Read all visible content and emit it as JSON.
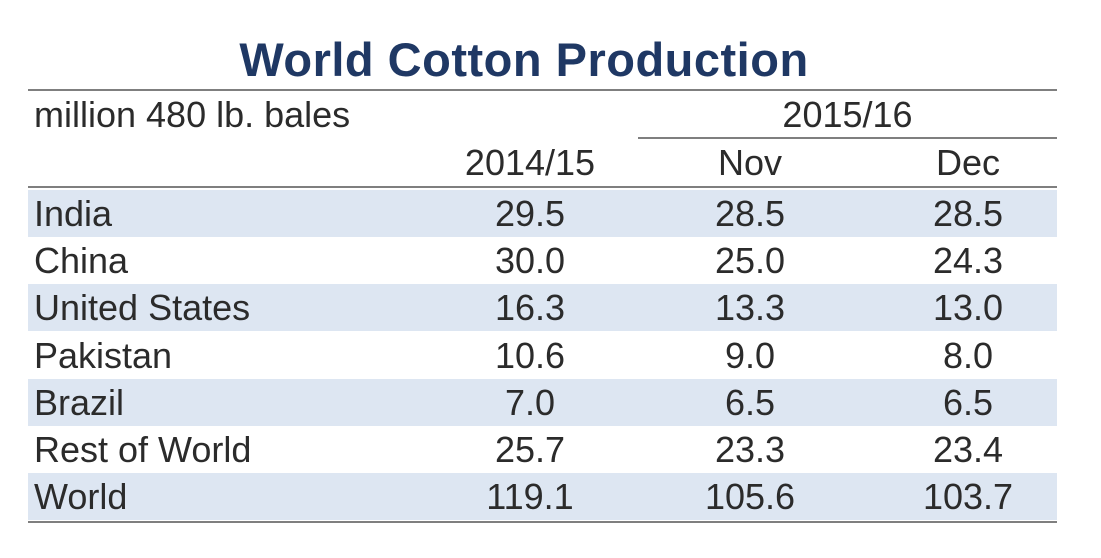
{
  "chart_data": {
    "type": "table",
    "title": "World Cotton Production",
    "unit_label": "million 480 lb. bales",
    "group_header": "2015/16",
    "columns": [
      "2014/15",
      "Nov",
      "Dec"
    ],
    "rows": [
      {
        "label": "India",
        "values": [
          "29.5",
          "28.5",
          "28.5"
        ]
      },
      {
        "label": "China",
        "values": [
          "30.0",
          "25.0",
          "24.3"
        ]
      },
      {
        "label": "United States",
        "values": [
          "16.3",
          "13.3",
          "13.0"
        ]
      },
      {
        "label": "Pakistan",
        "values": [
          "10.6",
          "9.0",
          "8.0"
        ]
      },
      {
        "label": "Brazil",
        "values": [
          "7.0",
          "6.5",
          "6.5"
        ]
      },
      {
        "label": "Rest of World",
        "values": [
          "25.7",
          "23.3",
          "23.4"
        ]
      },
      {
        "label": "World",
        "values": [
          "119.1",
          "105.6",
          "103.7"
        ]
      }
    ]
  },
  "colors": {
    "title": "#1f3864",
    "row_shade": "#dde6f2",
    "rule": "#7f7f7f",
    "text": "#2b2b2b"
  }
}
